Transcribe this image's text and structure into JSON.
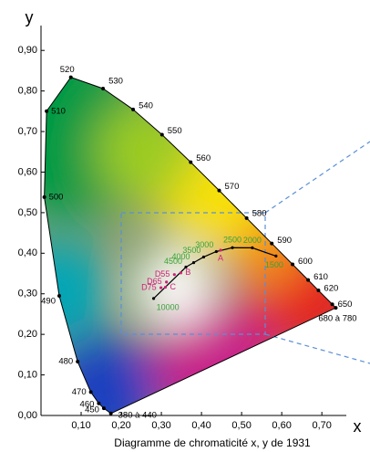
{
  "chart_data": {
    "type": "scatter",
    "caption": "Diagramme de chromaticité x, y de 1931",
    "x_label": "x",
    "y_label": "y",
    "xlim": [
      0,
      0.82
    ],
    "ylim": [
      0,
      0.95
    ],
    "xticks": [
      {
        "value": 0.1,
        "label": "0,10"
      },
      {
        "value": 0.2,
        "label": "0,20"
      },
      {
        "value": 0.3,
        "label": "0,30"
      },
      {
        "value": 0.4,
        "label": "0,40"
      },
      {
        "value": 0.5,
        "label": "0,50"
      },
      {
        "value": 0.6,
        "label": "0,60"
      },
      {
        "value": 0.7,
        "label": "0,70"
      }
    ],
    "yticks": [
      {
        "value": 0,
        "label": "0,00"
      },
      {
        "value": 0.1,
        "label": "0,10"
      },
      {
        "value": 0.2,
        "label": "0,20"
      },
      {
        "value": 0.3,
        "label": "0,30"
      },
      {
        "value": 0.4,
        "label": "0,40"
      },
      {
        "value": 0.5,
        "label": "0,50"
      },
      {
        "value": 0.6,
        "label": "0,60"
      },
      {
        "value": 0.7,
        "label": "0,70"
      },
      {
        "value": 0.8,
        "label": "0,80"
      },
      {
        "value": 0.9,
        "label": "0,90"
      }
    ],
    "series": [
      {
        "color": "#000000",
        "labels": [
          "380 à 440",
          "450",
          "460",
          "470",
          "480",
          "490",
          "500",
          "510",
          "520",
          "530",
          "540",
          "550",
          "560",
          "570",
          "580",
          "590",
          "600",
          "610",
          "620",
          "650",
          "680 à 780"
        ],
        "x": [
          0.1741,
          0.1566,
          0.144,
          0.1241,
          0.0913,
          0.0454,
          0.0082,
          0.0139,
          0.0743,
          0.1547,
          0.2296,
          0.3016,
          0.3731,
          0.4441,
          0.5125,
          0.5752,
          0.627,
          0.6658,
          0.6915,
          0.726,
          0.7347
        ],
        "values": [
          0.005,
          0.0177,
          0.0297,
          0.0578,
          0.1327,
          0.295,
          0.5384,
          0.7502,
          0.8338,
          0.8059,
          0.7543,
          0.6923,
          0.6245,
          0.5547,
          0.4866,
          0.4242,
          0.3725,
          0.334,
          0.3083,
          0.274,
          0.2653
        ]
      },
      {
        "color": "#39a339",
        "labels": [
          "10000",
          "4500",
          "4000",
          "3500",
          "3000",
          "2500",
          "2000",
          "1500"
        ],
        "x": [
          0.2807,
          0.3611,
          0.3805,
          0.4053,
          0.4369,
          0.477,
          0.5267,
          0.5857
        ],
        "values": [
          0.2884,
          0.3658,
          0.3768,
          0.3907,
          0.4041,
          0.4137,
          0.4133,
          0.3931
        ]
      },
      {
        "color": "#d0207a",
        "labels": [
          "A",
          "B",
          "C",
          "D55",
          "D65",
          "D75"
        ],
        "x": [
          0.4476,
          0.3484,
          0.3101,
          0.3324,
          0.3127,
          0.299
        ],
        "values": [
          0.4074,
          0.3516,
          0.3162,
          0.3474,
          0.329,
          0.3149
        ]
      }
    ]
  }
}
